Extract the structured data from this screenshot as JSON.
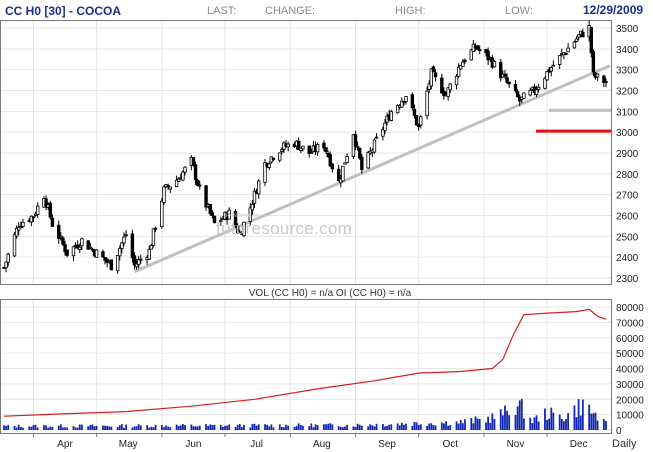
{
  "header": {
    "symbol": "CC H0 [30] - COCOA",
    "last_label": "LAST:",
    "change_label": "CHANGE:",
    "high_label": "HIGH:",
    "low_label": "LOW:",
    "date": "12/29/2009"
  },
  "watermark": "futuresource.com",
  "watermark_small": "Powered by",
  "volume_header": "VOL (CC H0) = n/a OI (CC H0) = n/a",
  "period_label": "Daily",
  "colors": {
    "frame": "#7a7a7a",
    "candle": "#000000",
    "oi_line": "#d42020",
    "volume_bar": "#1228b0",
    "trendline": "#c0c0c0",
    "level_red": "#e01010",
    "level_gray": "#c0c0c0",
    "title_text": "#1a2f8a"
  },
  "chart_data": [
    {
      "type": "candlestick",
      "title": "CC H0 [30] - COCOA",
      "x_ticks": [
        "Apr",
        "May",
        "Jun",
        "Jul",
        "Aug",
        "Sep",
        "Oct",
        "Nov",
        "Dec"
      ],
      "y_ticks": [
        2300,
        2400,
        2500,
        2600,
        2700,
        2800,
        2900,
        3000,
        3100,
        3200,
        3300,
        3400,
        3500
      ],
      "ylim": [
        2260,
        3540
      ],
      "date_range": [
        "2009-03-18",
        "2009-12-29"
      ],
      "approx_close": [
        {
          "date": "2009-03-18",
          "value": 2350
        },
        {
          "date": "2009-03-25",
          "value": 2560
        },
        {
          "date": "2009-04-01",
          "value": 2600
        },
        {
          "date": "2009-04-06",
          "value": 2700
        },
        {
          "date": "2009-04-10",
          "value": 2560
        },
        {
          "date": "2009-04-17",
          "value": 2420
        },
        {
          "date": "2009-04-24",
          "value": 2480
        },
        {
          "date": "2009-05-01",
          "value": 2420
        },
        {
          "date": "2009-05-08",
          "value": 2360
        },
        {
          "date": "2009-05-15",
          "value": 2510
        },
        {
          "date": "2009-05-19",
          "value": 2360
        },
        {
          "date": "2009-05-26",
          "value": 2430
        },
        {
          "date": "2009-06-02",
          "value": 2720
        },
        {
          "date": "2009-06-09",
          "value": 2780
        },
        {
          "date": "2009-06-15",
          "value": 2860
        },
        {
          "date": "2009-06-19",
          "value": 2720
        },
        {
          "date": "2009-06-26",
          "value": 2560
        },
        {
          "date": "2009-07-03",
          "value": 2610
        },
        {
          "date": "2009-07-08",
          "value": 2510
        },
        {
          "date": "2009-07-13",
          "value": 2640
        },
        {
          "date": "2009-07-20",
          "value": 2850
        },
        {
          "date": "2009-07-27",
          "value": 2920
        },
        {
          "date": "2009-08-03",
          "value": 2950
        },
        {
          "date": "2009-08-10",
          "value": 2900
        },
        {
          "date": "2009-08-17",
          "value": 2940
        },
        {
          "date": "2009-08-24",
          "value": 2760
        },
        {
          "date": "2009-08-31",
          "value": 3000
        },
        {
          "date": "2009-09-04",
          "value": 2820
        },
        {
          "date": "2009-09-11",
          "value": 2960
        },
        {
          "date": "2009-09-18",
          "value": 3100
        },
        {
          "date": "2009-09-25",
          "value": 3180
        },
        {
          "date": "2009-10-01",
          "value": 3020
        },
        {
          "date": "2009-10-07",
          "value": 3280
        },
        {
          "date": "2009-10-14",
          "value": 3180
        },
        {
          "date": "2009-10-21",
          "value": 3330
        },
        {
          "date": "2009-10-28",
          "value": 3410
        },
        {
          "date": "2009-11-04",
          "value": 3350
        },
        {
          "date": "2009-11-11",
          "value": 3250
        },
        {
          "date": "2009-11-18",
          "value": 3150
        },
        {
          "date": "2009-11-25",
          "value": 3200
        },
        {
          "date": "2009-12-02",
          "value": 3300
        },
        {
          "date": "2009-12-09",
          "value": 3380
        },
        {
          "date": "2009-12-16",
          "value": 3460
        },
        {
          "date": "2009-12-21",
          "value": 3500
        },
        {
          "date": "2009-12-23",
          "value": 3270
        },
        {
          "date": "2009-12-29",
          "value": 3240
        }
      ],
      "trendline": [
        {
          "date": "2009-05-19",
          "value": 2330
        },
        {
          "date": "2009-12-29",
          "value": 3305
        }
      ],
      "levels": [
        {
          "value": 3105,
          "color": "gray"
        },
        {
          "value": 3005,
          "color": "red"
        }
      ]
    },
    {
      "type": "line+bar",
      "title": "VOL (CC H0) = n/a OI (CC H0) = n/a",
      "x_ticks": [
        "Apr",
        "May",
        "Jun",
        "Jul",
        "Aug",
        "Sep",
        "Oct",
        "Nov",
        "Dec"
      ],
      "y_ticks": [
        0,
        10000,
        20000,
        30000,
        40000,
        50000,
        60000,
        70000,
        80000
      ],
      "ylim": [
        0,
        82000
      ],
      "series": [
        {
          "name": "OI (CC H0)",
          "type": "line",
          "values": [
            {
              "date": "2009-03-18",
              "value": 9000
            },
            {
              "date": "2009-04-15",
              "value": 10500
            },
            {
              "date": "2009-05-15",
              "value": 12000
            },
            {
              "date": "2009-06-15",
              "value": 15500
            },
            {
              "date": "2009-07-15",
              "value": 20000
            },
            {
              "date": "2009-08-15",
              "value": 27000
            },
            {
              "date": "2009-09-10",
              "value": 32000
            },
            {
              "date": "2009-10-01",
              "value": 37000
            },
            {
              "date": "2009-10-20",
              "value": 38000
            },
            {
              "date": "2009-11-05",
              "value": 40000
            },
            {
              "date": "2009-11-10",
              "value": 46000
            },
            {
              "date": "2009-11-15",
              "value": 62000
            },
            {
              "date": "2009-11-20",
              "value": 75000
            },
            {
              "date": "2009-12-01",
              "value": 76000
            },
            {
              "date": "2009-12-15",
              "value": 77000
            },
            {
              "date": "2009-12-21",
              "value": 78500
            },
            {
              "date": "2009-12-25",
              "value": 74000
            },
            {
              "date": "2009-12-29",
              "value": 72000
            }
          ]
        },
        {
          "name": "VOL (CC H0)",
          "type": "bar",
          "values": [
            {
              "date": "2009-03-25",
              "value": 2500
            },
            {
              "date": "2009-05-01",
              "value": 2600
            },
            {
              "date": "2009-06-01",
              "value": 2800
            },
            {
              "date": "2009-07-01",
              "value": 2800
            },
            {
              "date": "2009-08-03",
              "value": 3000
            },
            {
              "date": "2009-09-01",
              "value": 3200
            },
            {
              "date": "2009-10-01",
              "value": 4500
            },
            {
              "date": "2009-10-20",
              "value": 5000
            },
            {
              "date": "2009-11-02",
              "value": 7000
            },
            {
              "date": "2009-11-09",
              "value": 10000
            },
            {
              "date": "2009-11-13",
              "value": 12500
            },
            {
              "date": "2009-11-16",
              "value": 16500
            },
            {
              "date": "2009-11-19",
              "value": 14000
            },
            {
              "date": "2009-11-24",
              "value": 6000
            },
            {
              "date": "2009-12-01",
              "value": 11000
            },
            {
              "date": "2009-12-08",
              "value": 8000
            },
            {
              "date": "2009-12-14",
              "value": 13000
            },
            {
              "date": "2009-12-18",
              "value": 17000
            },
            {
              "date": "2009-12-22",
              "value": 12000
            },
            {
              "date": "2009-12-29",
              "value": 4000
            }
          ]
        }
      ]
    }
  ]
}
